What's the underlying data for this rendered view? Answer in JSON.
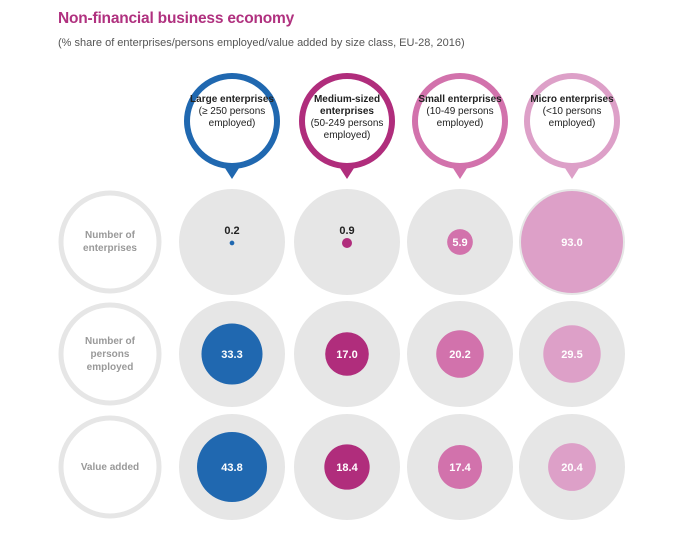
{
  "title": "Non-financial business economy",
  "subtitle": "(% share of  enterprises/persons employed/value added by size class, EU-28, 2016)",
  "colors": {
    "large": "#2068b0",
    "medium": "#b02d7c",
    "small": "#d272ac",
    "micro": "#dda0c8",
    "cell_bg": "#e6e6e6",
    "label_ring": "#e6e6e6",
    "title": "#b0317f"
  },
  "columns": [
    {
      "key": "large",
      "name": "Large enterprises",
      "range": "(≥ 250 persons employed)"
    },
    {
      "key": "medium",
      "name": "Medium-sized enterprises",
      "range": "(50-249 persons employed)"
    },
    {
      "key": "small",
      "name": "Small enterprises",
      "range": "(10-49 persons employed)"
    },
    {
      "key": "micro",
      "name": "Micro enterprises",
      "range": "(<10 persons employed)"
    }
  ],
  "rows": [
    {
      "label": "Number of enterprises",
      "values": [
        "0.2",
        "0.9",
        "5.9",
        "93.0"
      ]
    },
    {
      "label": "Number of persons employed",
      "values": [
        "33.3",
        "17.0",
        "20.2",
        "29.5"
      ]
    },
    {
      "label": "Value added",
      "values": [
        "43.8",
        "18.4",
        "17.4",
        "20.4"
      ]
    }
  ]
}
